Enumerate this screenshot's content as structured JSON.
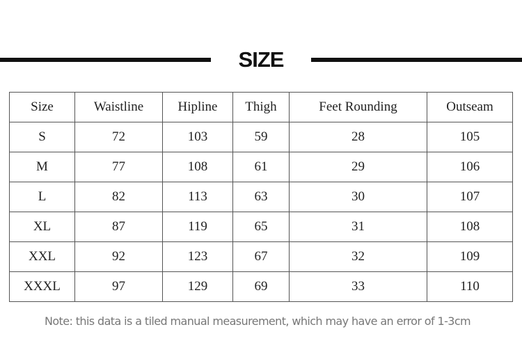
{
  "header": {
    "title": "SIZE"
  },
  "table": {
    "columns": [
      "Size",
      "Waistline",
      "Hipline",
      "Thigh",
      "Feet Rounding",
      "Outseam"
    ],
    "rows": [
      [
        "S",
        "72",
        "103",
        "59",
        "28",
        "105"
      ],
      [
        "M",
        "77",
        "108",
        "61",
        "29",
        "106"
      ],
      [
        "L",
        "82",
        "113",
        "63",
        "30",
        "107"
      ],
      [
        "XL",
        "87",
        "119",
        "65",
        "31",
        "108"
      ],
      [
        "XXL",
        "92",
        "123",
        "67",
        "32",
        "109"
      ],
      [
        "XXXL",
        "97",
        "129",
        "69",
        "33",
        "110"
      ]
    ]
  },
  "note": "Note: this data is a tiled manual measurement, which may have an error of 1-3cm"
}
